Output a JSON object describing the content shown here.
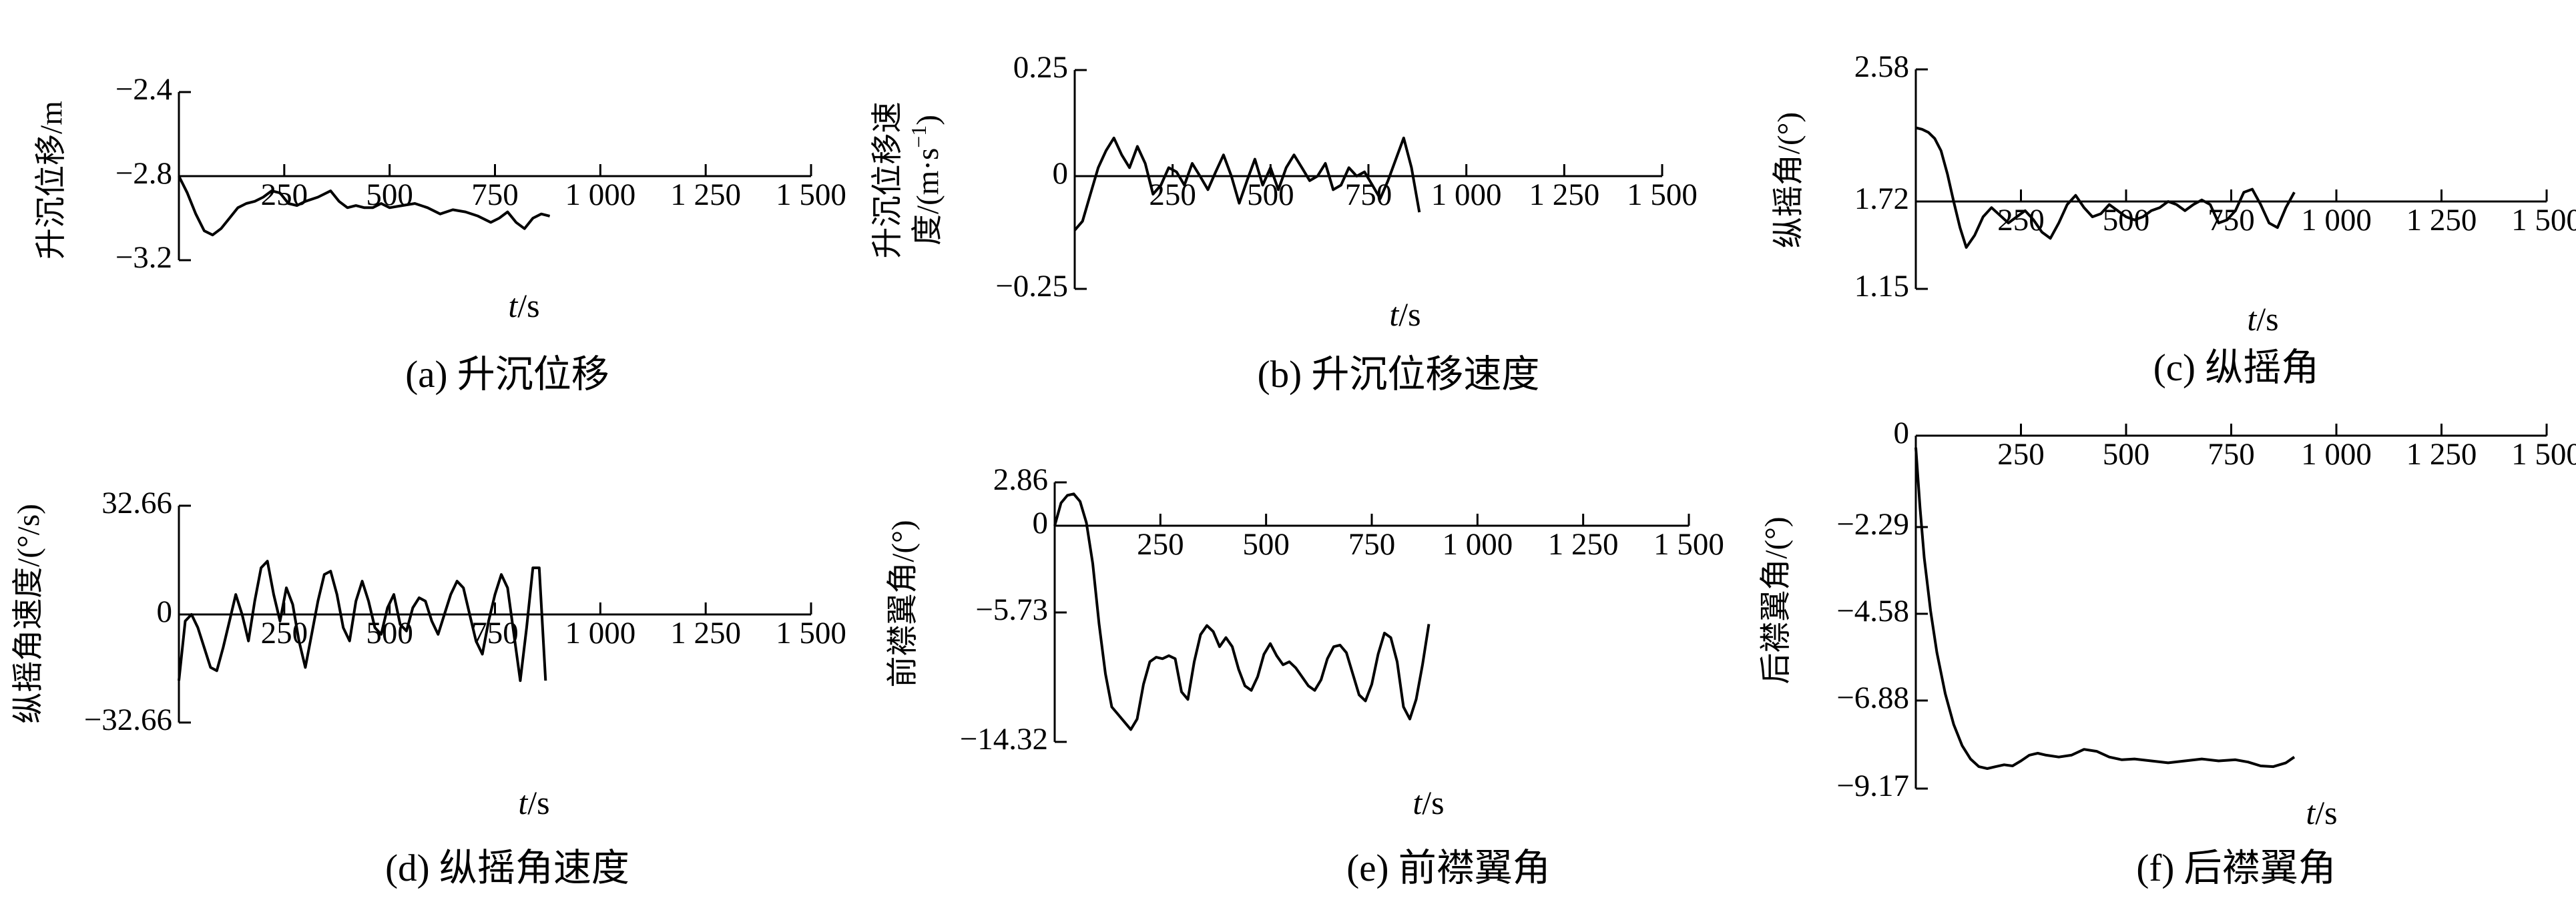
{
  "chart_data": [
    {
      "type": "line",
      "caption": "(a) 升沉位移",
      "ylabel": "升沉位移/m",
      "xlabel_italic": "t",
      "xlabel_unit": "/s",
      "xticks": [
        "250",
        "500",
        "750",
        "1 000",
        "1 250",
        "1 500"
      ],
      "yticks": [
        "-2.4",
        "-2.8",
        "-3.2"
      ],
      "xlim": [
        0,
        1500
      ],
      "ylim": [
        -3.2,
        -2.4
      ],
      "x": [
        0,
        20,
        40,
        60,
        80,
        100,
        120,
        140,
        160,
        180,
        200,
        220,
        240,
        260,
        280,
        300,
        330,
        360,
        380,
        400,
        420,
        440,
        460,
        480,
        500,
        530,
        560,
        590,
        620,
        650,
        680,
        710,
        740,
        760,
        780,
        800,
        820,
        840,
        860,
        880
      ],
      "y": [
        -2.8,
        -2.88,
        -2.98,
        -3.06,
        -3.08,
        -3.05,
        -3.0,
        -2.95,
        -2.93,
        -2.92,
        -2.9,
        -2.87,
        -2.88,
        -2.93,
        -2.94,
        -2.92,
        -2.9,
        -2.87,
        -2.92,
        -2.95,
        -2.94,
        -2.95,
        -2.95,
        -2.93,
        -2.95,
        -2.94,
        -2.93,
        -2.95,
        -2.98,
        -2.96,
        -2.97,
        -2.99,
        -3.02,
        -3.0,
        -2.97,
        -3.02,
        -3.05,
        -3.0,
        -2.98,
        -2.99
      ]
    },
    {
      "type": "line",
      "caption": "(b) 升沉位移速度",
      "ylabel_line1": "升沉位移速",
      "ylabel_line2": "度/(m·s",
      "ylabel_sup": "-1",
      "ylabel_end": ")",
      "xlabel_italic": "t",
      "xlabel_unit": "/s",
      "xticks": [
        "250",
        "500",
        "750",
        "1 000",
        "1 250",
        "1 500"
      ],
      "yticks": [
        "0.25",
        "0",
        "-0.25"
      ],
      "xlim": [
        0,
        1500
      ],
      "ylim": [
        -0.25,
        0.25
      ],
      "x": [
        0,
        20,
        40,
        60,
        80,
        100,
        120,
        140,
        160,
        180,
        200,
        220,
        240,
        260,
        280,
        300,
        320,
        340,
        360,
        380,
        400,
        420,
        440,
        460,
        480,
        500,
        520,
        540,
        560,
        580,
        600,
        620,
        640,
        660,
        680,
        700,
        720,
        740,
        760,
        780,
        800,
        820,
        840,
        860,
        880
      ],
      "y": [
        -0.12,
        -0.1,
        -0.04,
        0.02,
        0.06,
        0.09,
        0.05,
        0.02,
        0.07,
        0.03,
        -0.04,
        -0.02,
        0.02,
        0.01,
        -0.02,
        0.03,
        0.0,
        -0.03,
        0.01,
        0.05,
        0.0,
        -0.06,
        -0.01,
        0.04,
        -0.02,
        0.02,
        -0.03,
        0.02,
        0.05,
        0.02,
        -0.01,
        0.0,
        0.03,
        -0.03,
        -0.02,
        0.02,
        0.0,
        0.01,
        -0.02,
        -0.05,
        -0.01,
        0.04,
        0.09,
        0.02,
        -0.08
      ]
    },
    {
      "type": "line",
      "caption": "(c) 纵摇角",
      "ylabel": "纵摇角/(°)",
      "xlabel_italic": "t",
      "xlabel_unit": "/s",
      "xticks": [
        "250",
        "500",
        "750",
        "1 000",
        "1 250",
        "1 500"
      ],
      "yticks": [
        "2.58",
        "1.72",
        "1.15"
      ],
      "xlim": [
        0,
        1500
      ],
      "ylim": [
        1.15,
        2.58
      ],
      "x": [
        0,
        15,
        30,
        45,
        60,
        75,
        90,
        105,
        120,
        140,
        160,
        180,
        200,
        220,
        240,
        260,
        280,
        300,
        320,
        340,
        360,
        380,
        400,
        420,
        440,
        460,
        480,
        500,
        520,
        540,
        560,
        580,
        600,
        620,
        640,
        660,
        680,
        700,
        720,
        740,
        760,
        780,
        800,
        820,
        840,
        860,
        880,
        900
      ],
      "y": [
        2.2,
        2.19,
        2.17,
        2.13,
        2.05,
        1.9,
        1.72,
        1.55,
        1.42,
        1.5,
        1.62,
        1.68,
        1.63,
        1.58,
        1.62,
        1.66,
        1.6,
        1.52,
        1.48,
        1.58,
        1.7,
        1.76,
        1.68,
        1.62,
        1.64,
        1.7,
        1.66,
        1.62,
        1.6,
        1.62,
        1.66,
        1.68,
        1.72,
        1.7,
        1.66,
        1.7,
        1.73,
        1.7,
        1.58,
        1.6,
        1.66,
        1.78,
        1.8,
        1.7,
        1.58,
        1.55,
        1.68,
        1.78
      ]
    },
    {
      "type": "line",
      "caption": "(d) 纵摇角速度",
      "ylabel": "纵摇角速度/(°/s)",
      "xlabel_italic": "t",
      "xlabel_unit": "/s",
      "xticks": [
        "250",
        "500",
        "750",
        "1 000",
        "1 250",
        "1 500"
      ],
      "yticks": [
        "32.66",
        "0",
        "-32.66"
      ],
      "xlim": [
        0,
        1500
      ],
      "ylim": [
        -32.66,
        32.66
      ],
      "x": [
        0,
        15,
        30,
        45,
        60,
        75,
        90,
        105,
        120,
        135,
        150,
        165,
        180,
        195,
        210,
        225,
        240,
        255,
        270,
        285,
        300,
        315,
        330,
        345,
        360,
        375,
        390,
        405,
        420,
        435,
        450,
        465,
        480,
        495,
        510,
        525,
        540,
        555,
        570,
        585,
        600,
        615,
        630,
        645,
        660,
        675,
        690,
        705,
        720,
        735,
        750,
        765,
        780,
        795,
        810,
        825,
        840,
        855,
        870
      ],
      "y": [
        -20,
        -2,
        0,
        -4,
        -10,
        -16,
        -17,
        -10,
        -2,
        6,
        0,
        -8,
        4,
        14,
        16,
        6,
        -2,
        8,
        3,
        -8,
        -16,
        -6,
        4,
        12,
        13,
        6,
        -4,
        -8,
        4,
        10,
        4,
        -4,
        -6,
        2,
        6,
        -3,
        -5,
        2,
        5,
        4,
        -2,
        -6,
        0,
        6,
        10,
        8,
        0,
        -8,
        -12,
        -2,
        6,
        12,
        8,
        -6,
        -20,
        -4,
        14,
        14,
        -20
      ]
    },
    {
      "type": "line",
      "caption": "(e) 前襟翼角",
      "ylabel": "前襟翼角/(°)",
      "xlabel_italic": "t",
      "xlabel_unit": "/s",
      "xticks": [
        "250",
        "500",
        "750",
        "1 000",
        "1 250",
        "1 500"
      ],
      "yticks": [
        "2.86",
        "0",
        "-5.73",
        "-14.32"
      ],
      "xlim": [
        0,
        1500
      ],
      "ylim": [
        -14.32,
        2.86
      ],
      "x": [
        0,
        15,
        30,
        45,
        60,
        75,
        90,
        105,
        120,
        135,
        150,
        165,
        180,
        195,
        210,
        225,
        240,
        255,
        270,
        285,
        300,
        315,
        330,
        345,
        360,
        375,
        390,
        405,
        420,
        435,
        450,
        465,
        480,
        495,
        510,
        525,
        540,
        555,
        570,
        585,
        600,
        615,
        630,
        645,
        660,
        675,
        690,
        705,
        720,
        735,
        750,
        765,
        780,
        795,
        810,
        825,
        840,
        855,
        870,
        885
      ],
      "y": [
        0,
        1.5,
        2.0,
        2.1,
        1.6,
        0.2,
        -2.5,
        -6.5,
        -9.8,
        -12.0,
        -12.5,
        -13.0,
        -13.5,
        -12.8,
        -10.5,
        -9.0,
        -8.7,
        -8.8,
        -8.6,
        -8.8,
        -11.0,
        -11.5,
        -9.0,
        -7.2,
        -6.6,
        -7.0,
        -8.0,
        -7.4,
        -8.0,
        -9.5,
        -10.6,
        -10.9,
        -10.0,
        -8.5,
        -7.8,
        -8.6,
        -9.2,
        -9.0,
        -9.4,
        -10.0,
        -10.6,
        -10.9,
        -10.2,
        -8.8,
        -8.0,
        -7.9,
        -8.4,
        -9.8,
        -11.2,
        -11.6,
        -10.5,
        -8.5,
        -7.1,
        -7.4,
        -9.0,
        -12.0,
        -12.8,
        -11.5,
        -9.2,
        -6.5
      ]
    },
    {
      "type": "line",
      "caption": "(f) 后襟翼角",
      "ylabel": "后襟翼角/(°)",
      "xlabel_italic": "t",
      "xlabel_unit": "/s",
      "xticks": [
        "250",
        "500",
        "750",
        "1 000",
        "1 250",
        "1 500"
      ],
      "yticks": [
        "0",
        "-2.29",
        "-4.58",
        "-6.88",
        "-9.17"
      ],
      "xlim": [
        0,
        1500
      ],
      "ylim": [
        -9.17,
        0
      ],
      "x": [
        0,
        10,
        20,
        35,
        50,
        70,
        90,
        110,
        130,
        150,
        170,
        190,
        210,
        230,
        250,
        270,
        290,
        310,
        340,
        370,
        400,
        430,
        460,
        490,
        520,
        560,
        600,
        640,
        680,
        720,
        760,
        790,
        820,
        850,
        880,
        900
      ],
      "y": [
        -0.3,
        -1.8,
        -3.1,
        -4.5,
        -5.6,
        -6.7,
        -7.5,
        -8.05,
        -8.4,
        -8.6,
        -8.65,
        -8.6,
        -8.55,
        -8.58,
        -8.45,
        -8.3,
        -8.25,
        -8.3,
        -8.35,
        -8.3,
        -8.15,
        -8.2,
        -8.35,
        -8.42,
        -8.4,
        -8.45,
        -8.5,
        -8.45,
        -8.4,
        -8.45,
        -8.42,
        -8.48,
        -8.58,
        -8.6,
        -8.5,
        -8.35
      ]
    }
  ]
}
